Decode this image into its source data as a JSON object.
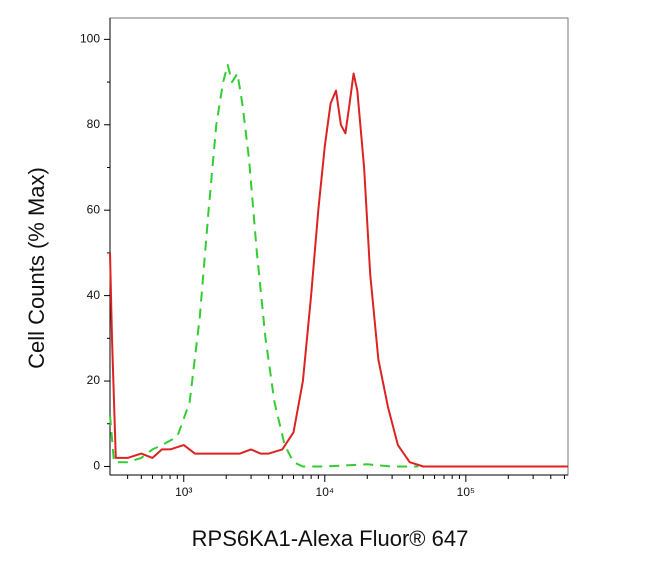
{
  "chart_data": {
    "type": "line",
    "x_label": "RPS6KA1-Alexa Fluor® 647",
    "y_label": "Cell Counts (% Max)",
    "x_scale": "log",
    "xlim": [
      300,
      530000
    ],
    "xticks": [
      {
        "value": 1000,
        "label": "10³"
      },
      {
        "value": 10000,
        "label": "10⁴"
      },
      {
        "value": 100000,
        "label": "10⁵"
      }
    ],
    "xminorticks": [
      400,
      500,
      600,
      700,
      800,
      900,
      2000,
      3000,
      4000,
      5000,
      6000,
      7000,
      8000,
      9000,
      20000,
      30000,
      40000,
      50000,
      60000,
      70000,
      80000,
      90000,
      200000,
      300000,
      400000,
      500000
    ],
    "ylim": [
      -2,
      105
    ],
    "yticks": [
      0,
      20,
      40,
      60,
      80,
      100
    ],
    "yminorticks": [
      10,
      30,
      50,
      70,
      90
    ],
    "series": [
      {
        "color": "#33cc33",
        "style": "dashed",
        "x": [
          300,
          320,
          400,
          500,
          600,
          700,
          900,
          1100,
          1300,
          1500,
          1700,
          1900,
          2050,
          2200,
          2400,
          2600,
          2900,
          3300,
          3800,
          4400,
          5200,
          6000,
          7000,
          10000,
          20000,
          30000,
          46000
        ],
        "values": [
          12,
          1,
          1,
          2,
          4,
          5,
          7,
          15,
          35,
          60,
          80,
          90,
          94,
          90,
          92,
          85,
          72,
          50,
          30,
          15,
          5,
          1,
          0,
          0,
          0.5,
          0,
          0
        ]
      },
      {
        "color": "#dd2222",
        "style": "solid",
        "x": [
          300,
          310,
          330,
          400,
          500,
          600,
          700,
          800,
          1000,
          1200,
          1500,
          2000,
          2500,
          3000,
          3500,
          4000,
          5000,
          6000,
          7000,
          8000,
          9000,
          10000,
          11000,
          12000,
          13000,
          14000,
          15000,
          16000,
          17000,
          19000,
          21000,
          24000,
          28000,
          33000,
          40000,
          50000,
          100000,
          200000,
          530000
        ],
        "values": [
          50,
          30,
          2,
          2,
          3,
          2,
          4,
          4,
          5,
          3,
          3,
          3,
          3,
          4,
          3,
          3,
          4,
          8,
          20,
          40,
          60,
          75,
          85,
          88,
          80,
          78,
          85,
          92,
          88,
          70,
          45,
          25,
          14,
          5,
          1,
          0,
          0,
          0,
          0
        ]
      }
    ]
  }
}
